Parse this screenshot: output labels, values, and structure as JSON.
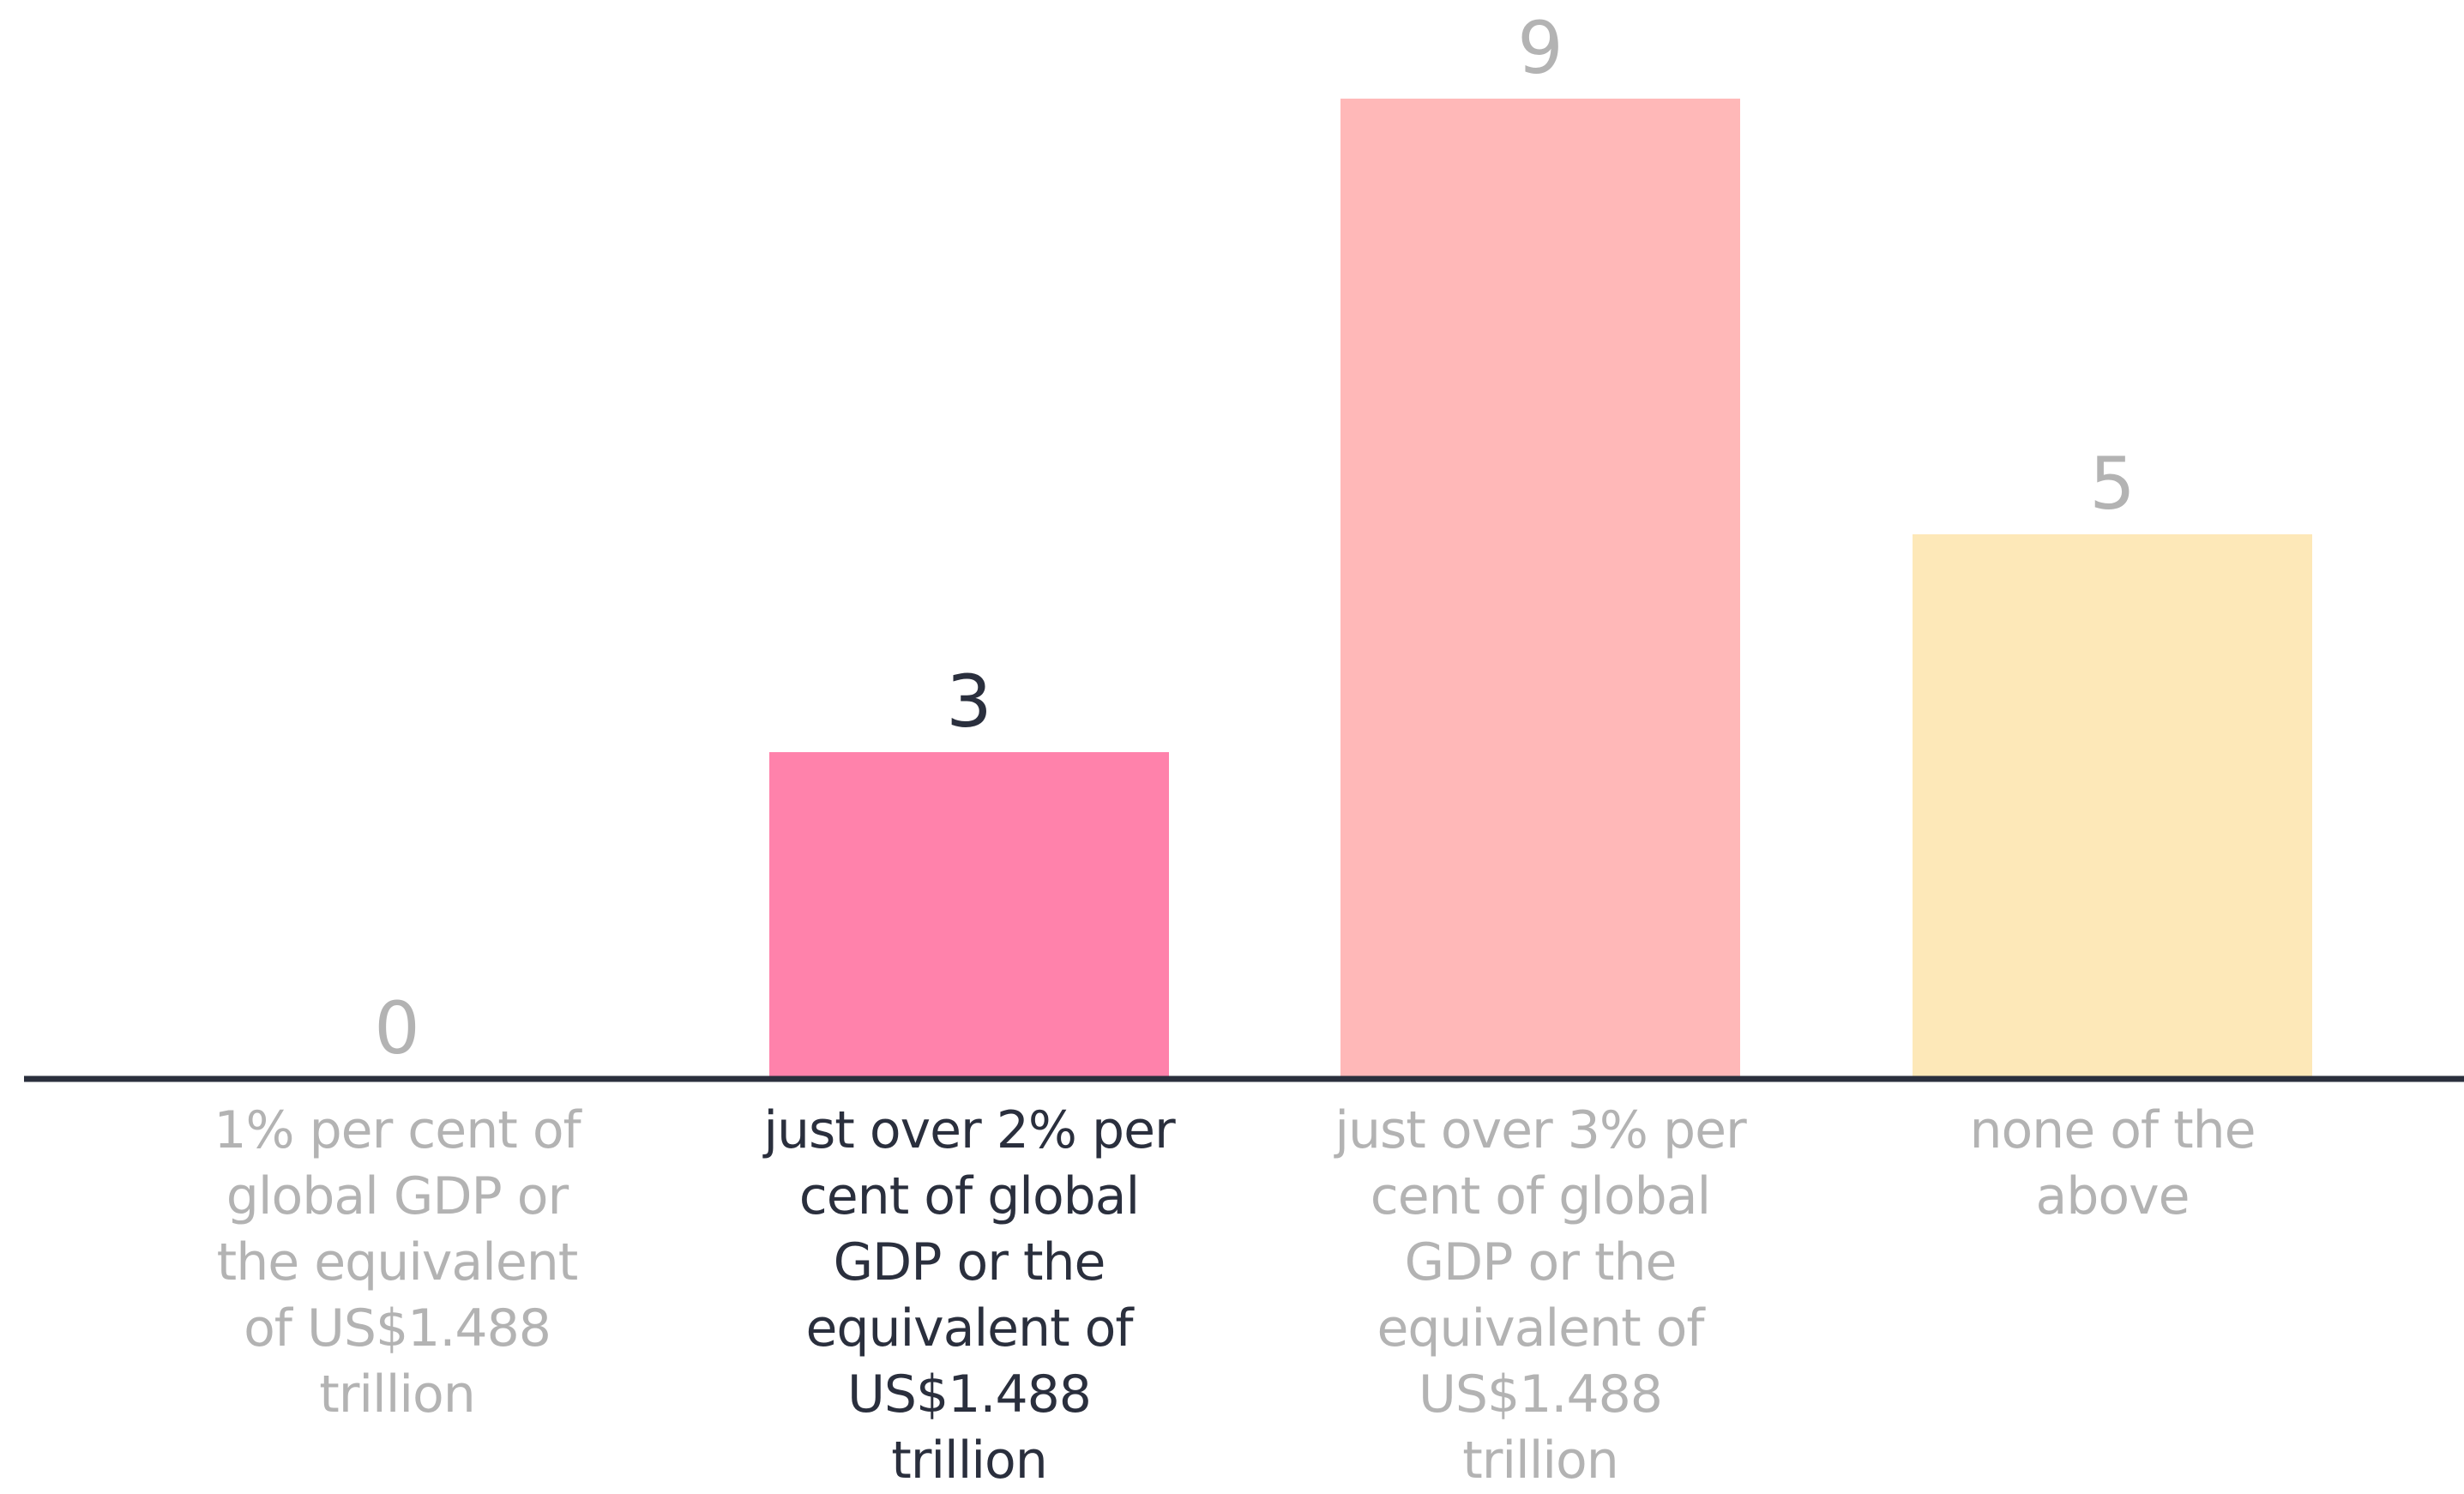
{
  "chart_data": {
    "type": "bar",
    "title": "",
    "xlabel": "",
    "ylabel": "",
    "categories": [
      "1% per cent of global GDP or the equivalent of US$1.488 trillion",
      "just over 2% per cent of global GDP or the equivalent of US$1.488 trillion",
      "just over 3% per cent of global GDP or the equivalent of US$1.488 trillion",
      "none of the above"
    ],
    "values": [
      0,
      3,
      9,
      5
    ],
    "value_labels": [
      "0",
      "3",
      "9",
      "5"
    ],
    "ylim": [
      0,
      9
    ],
    "grid": false,
    "highlighted_index": 1,
    "colors": {
      "bars": [
        "#ff82ab",
        "#ff82ab",
        "#ffb8b8",
        "#fde8b8"
      ],
      "axis": "#2a2f3d",
      "muted_text": "#b3b3b3",
      "highlight_text": "#2a2f3d"
    }
  }
}
